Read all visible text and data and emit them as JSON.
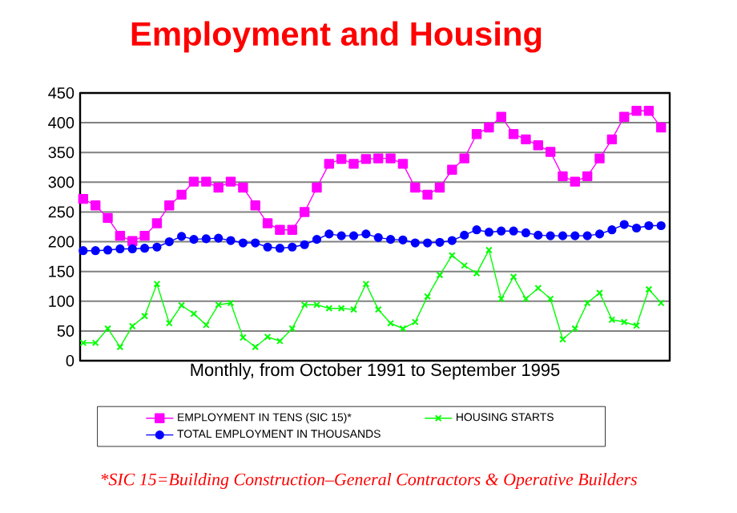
{
  "chart_data": {
    "type": "line",
    "title": "Employment  and Housing",
    "xlabel": "Monthly, from October 1991 to September 1995",
    "categories": [
      null,
      null,
      null,
      null,
      null,
      null,
      null,
      null,
      null,
      null,
      null,
      null,
      null,
      null,
      null,
      null,
      null,
      null,
      null,
      null,
      null,
      null,
      null,
      null,
      null,
      null,
      null,
      null,
      null,
      null,
      null,
      null,
      null,
      null,
      null,
      null,
      null,
      null,
      null,
      null,
      null,
      null,
      null,
      null,
      null,
      null,
      null,
      null
    ],
    "series": [
      {
        "name": "EMPLOYMENT IN TENS (SIC 15)*",
        "color": "#ff00ff",
        "marker": "square",
        "values": [
          272,
          261,
          240,
          210,
          201,
          210,
          231,
          261,
          279,
          301,
          301,
          291,
          301,
          291,
          261,
          231,
          220,
          220,
          250,
          291,
          331,
          339,
          331,
          339,
          340,
          340,
          331,
          291,
          279,
          291,
          321,
          340,
          381,
          392,
          410,
          381,
          372,
          362,
          351,
          310,
          301,
          310,
          340,
          372,
          410,
          420,
          420,
          392
        ]
      },
      {
        "name": "HOUSING STARTS",
        "color": "#00ff00",
        "marker": "cross",
        "values": [
          30,
          30,
          54,
          23,
          58,
          75,
          129,
          63,
          93,
          79,
          60,
          94,
          97,
          39,
          23,
          40,
          33,
          54,
          94,
          94,
          88,
          88,
          86,
          129,
          86,
          63,
          54,
          65,
          108,
          144,
          177,
          160,
          147,
          186,
          104,
          141,
          104,
          122,
          104,
          36,
          54,
          97,
          114,
          69,
          65,
          59,
          120,
          97
        ]
      },
      {
        "name": "TOTAL EMPLOYMENT IN THOUSANDS",
        "color": "#0000ff",
        "marker": "circle",
        "values": [
          185,
          185,
          186,
          188,
          188,
          189,
          191,
          200,
          209,
          204,
          205,
          206,
          202,
          198,
          198,
          191,
          189,
          191,
          195,
          204,
          213,
          210,
          210,
          213,
          207,
          204,
          203,
          198,
          198,
          199,
          202,
          211,
          220,
          216,
          218,
          218,
          215,
          211,
          210,
          210,
          210,
          210,
          213,
          220,
          229,
          223,
          227,
          227
        ]
      }
    ],
    "ylim": [
      0,
      450
    ],
    "yticks": [
      0,
      50,
      100,
      150,
      200,
      250,
      300,
      350,
      400,
      450
    ],
    "grid": "y",
    "legend": "bottom",
    "line_style": "solid",
    "annotations": [
      "*SIC 15=Building Construction–General Contractors & Operative Builders"
    ]
  }
}
